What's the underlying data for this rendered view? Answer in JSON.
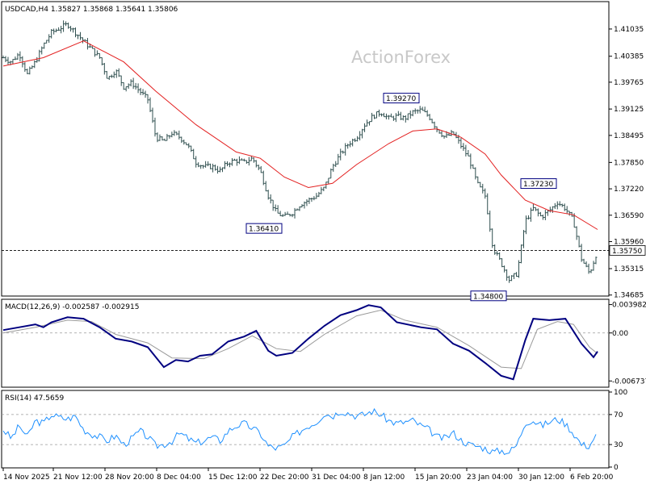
{
  "chart_data": [
    {
      "type": "candlestick",
      "panel": "price",
      "header": "USDCAD,H4  1.35827 1.35868 1.35641 1.35806",
      "watermark": "ActionForex",
      "ylim": [
        1.3468,
        1.4165
      ],
      "y_ticks": [
        "1.41035",
        "1.40385",
        "1.39765",
        "1.39125",
        "1.38495",
        "1.37850",
        "1.37220",
        "1.36590",
        "1.35960",
        "1.35315",
        "1.34685"
      ],
      "current_price": "1.35750",
      "annotations": [
        {
          "label": "1.39270",
          "value": 1.3927
        },
        {
          "label": "1.37230",
          "value": 1.3723
        },
        {
          "label": "1.36410",
          "value": 1.3641
        },
        {
          "label": "1.34800",
          "value": 1.348
        }
      ],
      "close_path": [
        [
          0,
          1.4035
        ],
        [
          10,
          1.4025
        ],
        [
          20,
          1.4045
        ],
        [
          30,
          1.3995
        ],
        [
          40,
          1.4025
        ],
        [
          50,
          1.4065
        ],
        [
          60,
          1.4095
        ],
        [
          70,
          1.4105
        ],
        [
          80,
          1.4115
        ],
        [
          90,
          1.4095
        ],
        [
          100,
          1.4075
        ],
        [
          110,
          1.4055
        ],
        [
          120,
          1.4035
        ],
        [
          130,
          1.3985
        ],
        [
          140,
          1.4005
        ],
        [
          150,
          1.3965
        ],
        [
          160,
          1.3975
        ],
        [
          170,
          1.3955
        ],
        [
          180,
          1.3935
        ],
        [
          190,
          1.3845
        ],
        [
          200,
          1.3835
        ],
        [
          210,
          1.3855
        ],
        [
          220,
          1.3845
        ],
        [
          230,
          1.3825
        ],
        [
          240,
          1.3785
        ],
        [
          250,
          1.3775
        ],
        [
          260,
          1.3775
        ],
        [
          270,
          1.3765
        ],
        [
          280,
          1.3785
        ],
        [
          290,
          1.379
        ],
        [
          300,
          1.3785
        ],
        [
          310,
          1.3795
        ],
        [
          320,
          1.3765
        ],
        [
          330,
          1.3705
        ],
        [
          340,
          1.3665
        ],
        [
          350,
          1.3655
        ],
        [
          360,
          1.3665
        ],
        [
          370,
          1.3685
        ],
        [
          380,
          1.3695
        ],
        [
          390,
          1.3705
        ],
        [
          400,
          1.3725
        ],
        [
          410,
          1.3775
        ],
        [
          420,
          1.3805
        ],
        [
          430,
          1.383
        ],
        [
          440,
          1.3845
        ],
        [
          450,
          1.3875
        ],
        [
          460,
          1.3895
        ],
        [
          470,
          1.3905
        ],
        [
          480,
          1.389
        ],
        [
          490,
          1.3895
        ],
        [
          500,
          1.389
        ],
        [
          510,
          1.3905
        ],
        [
          520,
          1.391
        ],
        [
          530,
          1.3895
        ],
        [
          540,
          1.3865
        ],
        [
          550,
          1.3845
        ],
        [
          560,
          1.3855
        ],
        [
          570,
          1.3825
        ],
        [
          580,
          1.3795
        ],
        [
          590,
          1.3735
        ],
        [
          600,
          1.3705
        ],
        [
          610,
          1.358
        ],
        [
          620,
          1.3545
        ],
        [
          630,
          1.3505
        ],
        [
          640,
          1.352
        ],
        [
          650,
          1.3645
        ],
        [
          660,
          1.3675
        ],
        [
          670,
          1.3655
        ],
        [
          680,
          1.367
        ],
        [
          690,
          1.369
        ],
        [
          700,
          1.3675
        ],
        [
          710,
          1.3645
        ],
        [
          720,
          1.3555
        ],
        [
          730,
          1.352
        ],
        [
          740,
          1.3575
        ]
      ],
      "ma_path": [
        [
          0,
          1.4015
        ],
        [
          50,
          1.4035
        ],
        [
          100,
          1.4075
        ],
        [
          150,
          1.4025
        ],
        [
          190,
          1.3955
        ],
        [
          240,
          1.3875
        ],
        [
          290,
          1.381
        ],
        [
          320,
          1.3795
        ],
        [
          350,
          1.375
        ],
        [
          380,
          1.3725
        ],
        [
          410,
          1.3735
        ],
        [
          440,
          1.378
        ],
        [
          480,
          1.383
        ],
        [
          510,
          1.386
        ],
        [
          540,
          1.3865
        ],
        [
          570,
          1.3845
        ],
        [
          600,
          1.3805
        ],
        [
          620,
          1.3755
        ],
        [
          650,
          1.3695
        ],
        [
          680,
          1.367
        ],
        [
          710,
          1.366
        ],
        [
          740,
          1.3625
        ]
      ]
    },
    {
      "type": "line",
      "panel": "macd",
      "header": "MACD(12,26,9) -0.002587 -0.002915",
      "ylim": [
        -0.0075,
        0.0045
      ],
      "y_ticks": [
        {
          "label": "0.003982",
          "value": 0.003982
        },
        {
          "label": "0.00",
          "value": 0.0
        },
        {
          "label": "-0.006737",
          "value": -0.006737
        }
      ],
      "series": [
        {
          "line": "macd",
          "color": "#000080",
          "points": [
            [
              0,
              0.0004
            ],
            [
              20,
              0.0008
            ],
            [
              40,
              0.0012
            ],
            [
              50,
              0.0008
            ],
            [
              60,
              0.0015
            ],
            [
              80,
              0.0022
            ],
            [
              100,
              0.002
            ],
            [
              120,
              0.0008
            ],
            [
              140,
              -0.0008
            ],
            [
              160,
              -0.0012
            ],
            [
              180,
              -0.002
            ],
            [
              200,
              -0.0048
            ],
            [
              215,
              -0.0038
            ],
            [
              230,
              -0.004
            ],
            [
              245,
              -0.0032
            ],
            [
              260,
              -0.003
            ],
            [
              280,
              -0.0012
            ],
            [
              300,
              -0.0005
            ],
            [
              315,
              0.0003
            ],
            [
              330,
              -0.0025
            ],
            [
              340,
              -0.0032
            ],
            [
              360,
              -0.0028
            ],
            [
              380,
              -0.0008
            ],
            [
              400,
              0.001
            ],
            [
              420,
              0.0025
            ],
            [
              440,
              0.0032
            ],
            [
              455,
              0.0039
            ],
            [
              470,
              0.0036
            ],
            [
              490,
              0.0015
            ],
            [
              520,
              0.0008
            ],
            [
              540,
              0.0005
            ],
            [
              560,
              -0.0015
            ],
            [
              580,
              -0.0025
            ],
            [
              600,
              -0.0042
            ],
            [
              620,
              -0.006
            ],
            [
              635,
              -0.0065
            ],
            [
              650,
              -0.001
            ],
            [
              660,
              0.002
            ],
            [
              680,
              0.0018
            ],
            [
              700,
              0.002
            ],
            [
              720,
              -0.0015
            ],
            [
              735,
              -0.0034
            ],
            [
              740,
              -0.0026
            ]
          ]
        },
        {
          "line": "signal",
          "color": "#9a9a9a",
          "points": [
            [
              0,
              0.0
            ],
            [
              40,
              0.0008
            ],
            [
              80,
              0.0018
            ],
            [
              110,
              0.0016
            ],
            [
              140,
              -0.0002
            ],
            [
              180,
              -0.0014
            ],
            [
              210,
              -0.0035
            ],
            [
              250,
              -0.0036
            ],
            [
              280,
              -0.0022
            ],
            [
              310,
              -0.0004
            ],
            [
              340,
              -0.0022
            ],
            [
              370,
              -0.0026
            ],
            [
              400,
              -0.0002
            ],
            [
              440,
              0.0024
            ],
            [
              470,
              0.0032
            ],
            [
              500,
              0.0018
            ],
            [
              540,
              0.0008
            ],
            [
              580,
              -0.0018
            ],
            [
              620,
              -0.0048
            ],
            [
              645,
              -0.005
            ],
            [
              665,
              0.0005
            ],
            [
              690,
              0.0016
            ],
            [
              710,
              0.0012
            ],
            [
              730,
              -0.002
            ],
            [
              740,
              -0.0029
            ]
          ]
        }
      ]
    },
    {
      "type": "line",
      "panel": "rsi",
      "header": "RSI(14) 47.5659",
      "ylim": [
        0,
        100
      ],
      "y_ticks": [
        "100",
        "70",
        "30",
        "0"
      ],
      "levels": [
        70,
        30
      ],
      "series": [
        {
          "color": "#1e90ff",
          "points": [
            [
              0,
              50
            ],
            [
              10,
              38
            ],
            [
              20,
              55
            ],
            [
              30,
              40
            ],
            [
              40,
              62
            ],
            [
              50,
              58
            ],
            [
              60,
              70
            ],
            [
              70,
              66
            ],
            [
              80,
              64
            ],
            [
              90,
              68
            ],
            [
              100,
              50
            ],
            [
              110,
              44
            ],
            [
              120,
              40
            ],
            [
              130,
              35
            ],
            [
              140,
              42
            ],
            [
              150,
              30
            ],
            [
              160,
              38
            ],
            [
              170,
              48
            ],
            [
              180,
              40
            ],
            [
              190,
              28
            ],
            [
              200,
              30
            ],
            [
              210,
              35
            ],
            [
              220,
              45
            ],
            [
              230,
              38
            ],
            [
              240,
              32
            ],
            [
              250,
              35
            ],
            [
              260,
              40
            ],
            [
              270,
              35
            ],
            [
              280,
              48
            ],
            [
              290,
              55
            ],
            [
              300,
              58
            ],
            [
              310,
              52
            ],
            [
              320,
              45
            ],
            [
              330,
              28
            ],
            [
              340,
              25
            ],
            [
              350,
              28
            ],
            [
              360,
              40
            ],
            [
              370,
              48
            ],
            [
              380,
              55
            ],
            [
              390,
              60
            ],
            [
              400,
              72
            ],
            [
              410,
              68
            ],
            [
              420,
              75
            ],
            [
              430,
              72
            ],
            [
              440,
              68
            ],
            [
              450,
              70
            ],
            [
              460,
              75
            ],
            [
              470,
              70
            ],
            [
              480,
              62
            ],
            [
              490,
              58
            ],
            [
              500,
              60
            ],
            [
              510,
              62
            ],
            [
              520,
              55
            ],
            [
              530,
              50
            ],
            [
              540,
              40
            ],
            [
              550,
              38
            ],
            [
              560,
              46
            ],
            [
              570,
              36
            ],
            [
              580,
              30
            ],
            [
              590,
              28
            ],
            [
              600,
              25
            ],
            [
              610,
              20
            ],
            [
              620,
              22
            ],
            [
              630,
              20
            ],
            [
              640,
              30
            ],
            [
              650,
              60
            ],
            [
              660,
              62
            ],
            [
              670,
              55
            ],
            [
              680,
              60
            ],
            [
              690,
              64
            ],
            [
              700,
              58
            ],
            [
              710,
              45
            ],
            [
              720,
              30
            ],
            [
              730,
              28
            ],
            [
              740,
              47.6
            ]
          ]
        }
      ]
    }
  ],
  "x_axis": {
    "labels": [
      "14 Nov 2025",
      "21 Nov 12:00",
      "28 Nov 20:00",
      "8 Dec 04:00",
      "15 Dec 12:00",
      "22 Dec 20:00",
      "31 Dec 04:00",
      "8 Jan 12:00",
      "15 Jan 20:00",
      "23 Jan 04:00",
      "30 Jan 12:00",
      "6 Feb 20:00"
    ]
  },
  "colors": {
    "bars": "#2f4f4f",
    "ma": "#e32020",
    "macd": "#000080",
    "signal": "#9a9a9a",
    "rsi": "#1e90ff",
    "axis": "#000000",
    "dotted": "#9a9a9a"
  }
}
